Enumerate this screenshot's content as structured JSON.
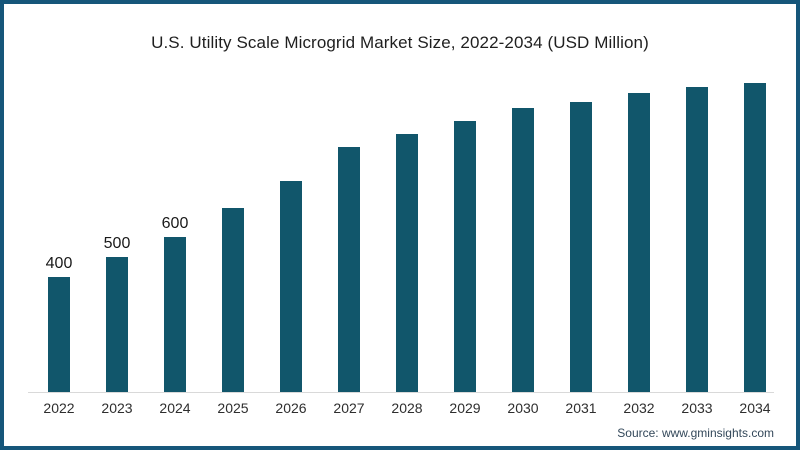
{
  "header": {
    "title": "U.S. Utility Scale Microgrid Market Size, 2022-2034 (USD Million)"
  },
  "footer": {
    "source": "Source: www.gminsights.com"
  },
  "colors": {
    "bar_fill": "#11566b",
    "frame_border": "#16567a",
    "axis_line": "#d9d9d9",
    "title_text": "#1f1f1f",
    "tick_text": "#2e2e2e",
    "source_text": "#33485a"
  },
  "chart_data": {
    "type": "bar",
    "title": "U.S. Utility Scale Microgrid Market Size, 2022-2034 (USD Million)",
    "categories": [
      "2022",
      "2023",
      "2024",
      "2025",
      "2026",
      "2027",
      "2028",
      "2029",
      "2030",
      "2031",
      "2032",
      "2033",
      "2034"
    ],
    "values": [
      400,
      500,
      600,
      745,
      880,
      1050,
      1115,
      1180,
      1245,
      1275,
      1320,
      1350,
      1370
    ],
    "data_labels": [
      "400",
      "500",
      "600",
      "",
      "",
      "",
      "",
      "",
      "",
      "",
      "",
      "",
      ""
    ],
    "xlabel": "",
    "ylabel": "",
    "unit": "USD Million",
    "ylim": [
      0,
      1400
    ],
    "grid": false,
    "legend": false,
    "bar_color": "#11566b"
  }
}
